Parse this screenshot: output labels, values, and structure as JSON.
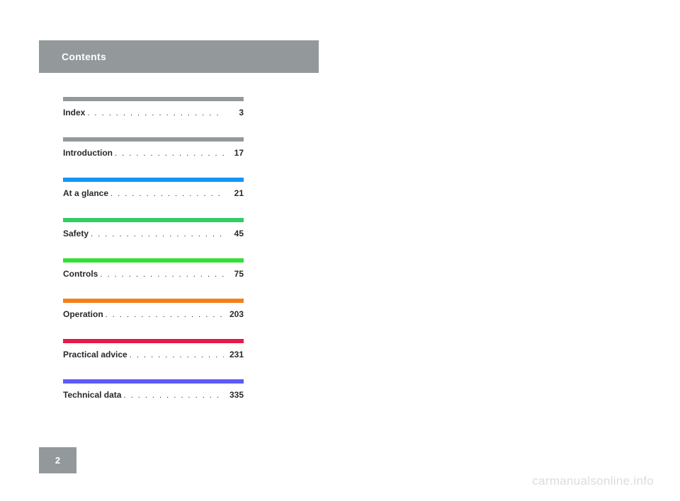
{
  "header": {
    "title": "Contents"
  },
  "toc": {
    "items": [
      {
        "label": "Index",
        "page": "3",
        "bar_color": "#93999a"
      },
      {
        "label": "Introduction",
        "page": "17",
        "bar_color": "#93999a"
      },
      {
        "label": "At a glance",
        "page": "21",
        "bar_color": "#1496f5"
      },
      {
        "label": "Safety",
        "page": "45",
        "bar_color": "#33cc66"
      },
      {
        "label": "Controls",
        "page": "75",
        "bar_color": "#33e033"
      },
      {
        "label": "Operation",
        "page": "203",
        "bar_color": "#f58019"
      },
      {
        "label": "Practical advice",
        "page": "231",
        "bar_color": "#e6194b"
      },
      {
        "label": "Technical data",
        "page": "335",
        "bar_color": "#5b5bfa"
      }
    ]
  },
  "page_number": "2",
  "watermark": "carmanualsonline.info",
  "dots": ". . . . . . . . . . . . . . . . . . . . . . . . . . . . . . . . . . . . . . . . . . . . . . . . ."
}
